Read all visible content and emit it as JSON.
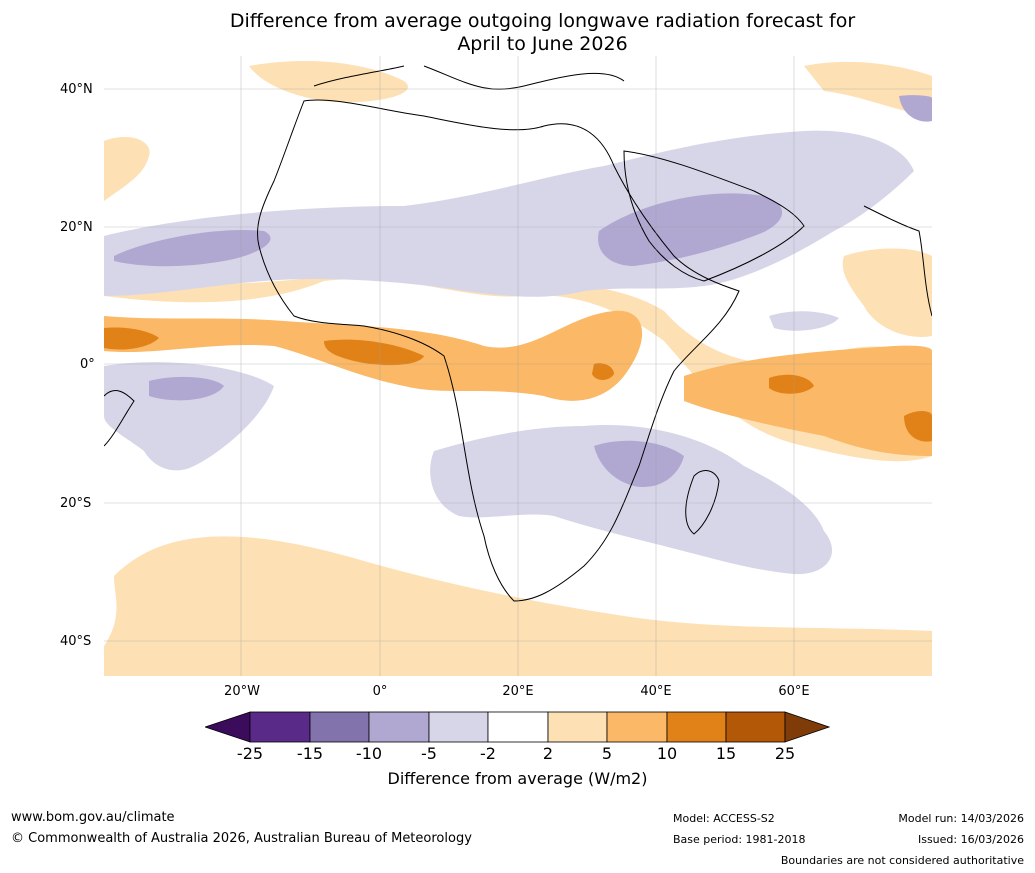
{
  "title_line1": "Difference from average outgoing longwave radiation forecast for",
  "title_line2": "April to June 2026",
  "lat_labels": [
    "40°N",
    "20°N",
    "0°",
    "20°S",
    "40°S"
  ],
  "lon_labels": [
    "20°W",
    "0°",
    "20°E",
    "40°E",
    "60°E"
  ],
  "colorbar": {
    "ticks": [
      "-25",
      "-15",
      "-10",
      "-5",
      "-2",
      "2",
      "5",
      "10",
      "15",
      "25"
    ],
    "colors": [
      "#3b0b5c",
      "#5a2a88",
      "#8273ad",
      "#b1a8d1",
      "#d7d6e9",
      "#ffffff",
      "#fde0b4",
      "#fbb866",
      "#e08217",
      "#b35806",
      "#7f3b08"
    ],
    "title": "Difference from average (W/m2)"
  },
  "footer": {
    "url": "www.bom.gov.au/climate",
    "copyright": "© Commonwealth of Australia 2026, Australian Bureau of Meteorology",
    "model": "Model: ACCESS-S2",
    "base_period": "Base period: 1981-2018",
    "model_run": "Model run: 14/03/2026",
    "issued": "Issued: 16/03/2026",
    "boundaries": "Boundaries are not considered authoritative"
  }
}
